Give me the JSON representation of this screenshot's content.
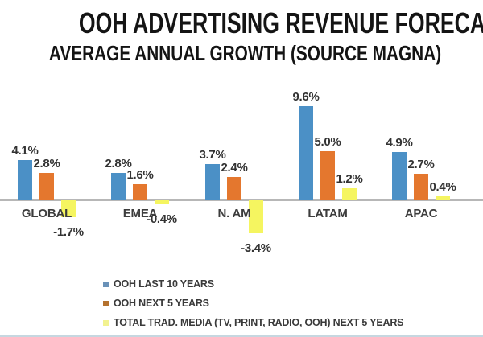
{
  "title": "OOH ADVERTISING REVENUE FORECASTS",
  "subtitle": "AVERAGE ANNUAL GROWTH (SOURCE MAGNA)",
  "chart_data": {
    "type": "bar",
    "title": "OOH ADVERTISING REVENUE FORECASTS",
    "subtitle": "AVERAGE ANNUAL GROWTH (SOURCE MAGNA)",
    "categories": [
      "GLOBAL",
      "EMEA",
      "N. AM",
      "LATAM",
      "APAC"
    ],
    "series": [
      {
        "name": "OOH LAST 10 YEARS",
        "color": "#4b90c6",
        "legend_color": "#6a92b8",
        "values": [
          4.1,
          2.8,
          3.7,
          9.6,
          4.9
        ],
        "value_labels": [
          "4.1%",
          "2.8%",
          "3.7%",
          "9.6%",
          "4.9%"
        ]
      },
      {
        "name": "OOH NEXT 5 YEARS",
        "color": "#e4772e",
        "legend_color": "#b5722f",
        "values": [
          2.8,
          1.6,
          2.4,
          5.0,
          2.7
        ],
        "value_labels": [
          "2.8%",
          "1.6%",
          "2.4%",
          "5.0%",
          "2.7%"
        ]
      },
      {
        "name": "TOTAL TRAD. MEDIA (TV, PRINT, RADIO, OOH) NEXT 5 YEARS",
        "color": "#f5f560",
        "legend_color": "#f2f290",
        "values": [
          -1.7,
          -0.4,
          -3.4,
          1.2,
          0.4
        ],
        "value_labels": [
          "-1.7%",
          "-0.4%",
          "-3.4%",
          "1.2%",
          "0.4%"
        ]
      }
    ],
    "unit": "%",
    "ylim": [
      -4,
      10
    ],
    "grid": false,
    "y_axis_visible": false,
    "legend_position": "bottom-left",
    "axis_color": "#b7b7b7"
  },
  "colors": {
    "background": "#ffffff",
    "title_text": "#141414",
    "value_label_text": "#333333",
    "category_text": "#3d3d3d",
    "legend_text": "#3a3a3a",
    "bottom_strip": "#c6d7e0"
  }
}
